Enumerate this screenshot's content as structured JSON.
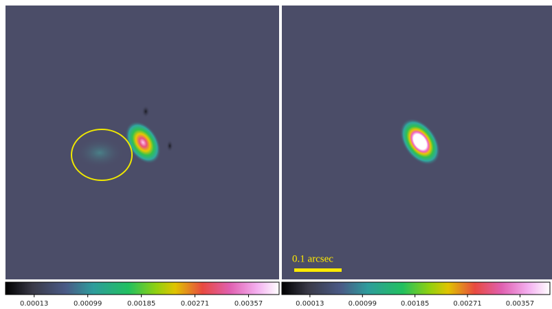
{
  "panels": [
    {
      "colorbar": {
        "lim": [
          -0.00033,
          0.00406
        ],
        "ticks": [
          0.00013,
          0.00099,
          0.00185,
          0.00271,
          0.00357
        ]
      }
    },
    {
      "colorbar": {
        "lim": [
          -0.00033,
          0.00406
        ],
        "ticks": [
          0.00013,
          0.00099,
          0.00185,
          0.00271,
          0.00357
        ]
      },
      "scale_bar": "0.1 arcsec"
    }
  ]
}
